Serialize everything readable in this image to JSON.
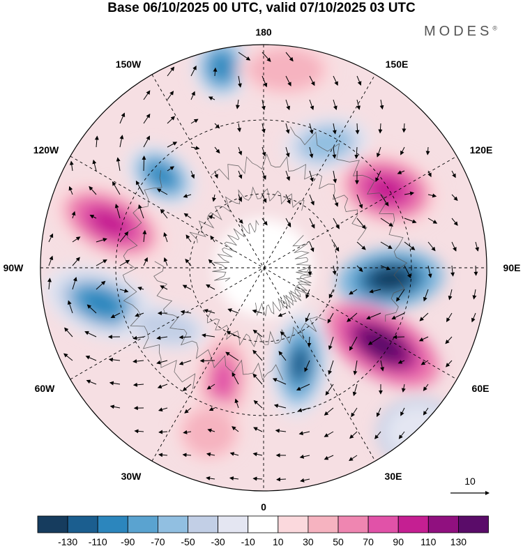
{
  "title": "Base 06/10/2025 00 UTC, valid 07/10/2025 03 UTC",
  "brand": {
    "name": "MODES",
    "mark": "®"
  },
  "longitude_labels": {
    "top": "180",
    "top_right": "150E",
    "upper_right": "120E",
    "right": "90E",
    "lower_right": "60E",
    "bottom_right": "30E",
    "bottom": "0",
    "bottom_left": "30W",
    "lower_left": "60W",
    "left": "90W",
    "upper_left": "120W",
    "top_left": "150W"
  },
  "reference_vector": {
    "label": "10"
  },
  "colorbar": {
    "colors": [
      "#163c5e",
      "#1b5e8f",
      "#2c86bd",
      "#5aa3d0",
      "#91bfe1",
      "#c2cfe6",
      "#e4e6f2",
      "#ffffff",
      "#fbd9dd",
      "#f6b3c0",
      "#ef86b1",
      "#e152a8",
      "#c51f92",
      "#90107f",
      "#5a0c69"
    ],
    "labels": [
      "-130",
      "-110",
      "-90",
      "-70",
      "-50",
      "-30",
      "-10",
      "10",
      "30",
      "50",
      "70",
      "90",
      "110",
      "130"
    ]
  }
}
